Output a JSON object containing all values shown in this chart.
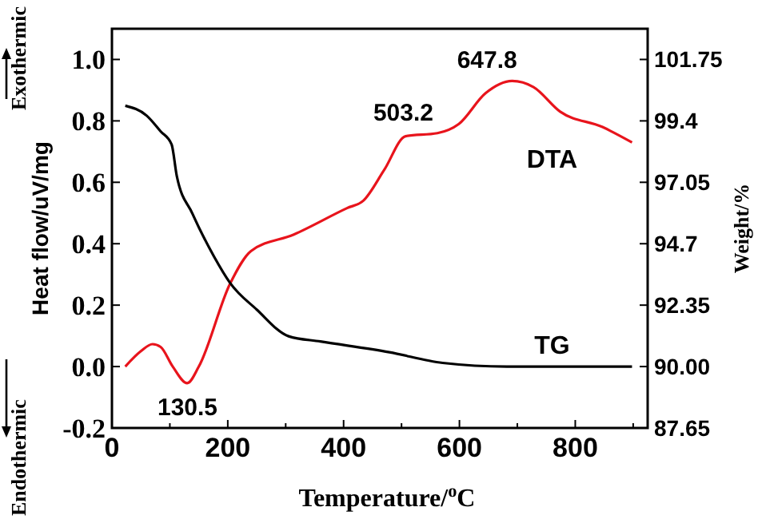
{
  "chart_data": {
    "type": "line",
    "xlabel": "Temperature/$^{o}$C",
    "ylabel": "Heat flow/uV/mg",
    "y2label": "Weight/%",
    "xlim": [
      0,
      925
    ],
    "xticks": [
      0,
      {
        "value": 100,
        "label": null
      },
      200,
      {
        "value": 300,
        "label": null
      },
      400,
      {
        "value": 500,
        "label": null
      },
      600,
      {
        "value": 700,
        "label": null
      },
      800,
      {
        "value": 900,
        "label": null
      }
    ],
    "ylim": [
      -0.2,
      1.1
    ],
    "yticks": [
      -0.2,
      {
        "value": 0,
        "label": "0.0"
      },
      0.2,
      0.4,
      0.6,
      0.8,
      {
        "value": 1,
        "label": "1.0"
      }
    ],
    "y2lim": [
      87.65,
      102.925
    ],
    "y2ticks": [
      87.65,
      {
        "value": 90,
        "label": "90.00"
      },
      92.35,
      94.7,
      97.05,
      99.4,
      101.75
    ],
    "grid": false,
    "series": [
      {
        "name": "DTA",
        "color": "#e8141c",
        "x": [
          23,
          50,
          70,
          84,
          105,
          130,
          150,
          204,
          240,
          314,
          406,
          434,
          470,
          507,
          562,
          599,
          645,
          691,
          728,
          774,
          847,
          898
        ],
        "values": [
          0.0,
          0.05,
          0.073,
          0.064,
          0.0,
          -0.054,
          0.0,
          0.27,
          0.376,
          0.43,
          0.516,
          0.54,
          0.64,
          0.75,
          0.76,
          0.79,
          0.89,
          0.93,
          0.91,
          0.83,
          0.78,
          0.73
        ]
      },
      {
        "name": "TG",
        "color": "#000000",
        "axis": "y2",
        "x": [
          23,
          60,
          84,
          103,
          112,
          139,
          176,
          204,
          250,
          305,
          360,
          479,
          571,
          682,
          898
        ],
        "values": [
          99.98,
          99.6,
          99.0,
          98.5,
          97.29,
          95.85,
          94.22,
          93.2,
          92.18,
          91.16,
          90.96,
          90.55,
          90.14,
          90.0,
          90.0
        ]
      }
    ],
    "annotations": [
      {
        "text": "130.5",
        "x": 130.5,
        "y": -0.054
      },
      {
        "text": "503.2",
        "x": 503.2,
        "y": 0.76
      },
      {
        "text": "647.8",
        "x": 647.8,
        "y": 0.93
      },
      "Exothermic",
      "Endothermic"
    ]
  }
}
